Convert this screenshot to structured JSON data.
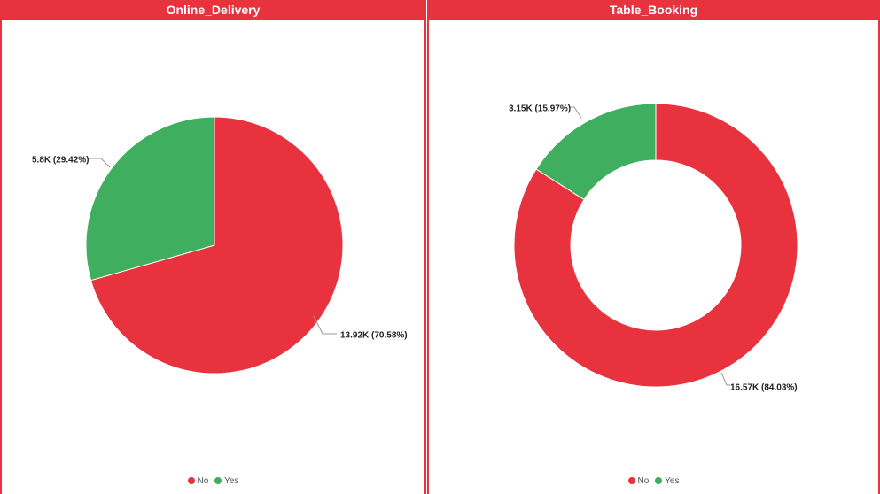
{
  "colors": {
    "no": "#e8333f",
    "yes": "#3fae5f"
  },
  "chart_data": [
    {
      "type": "pie",
      "title": "Online_Delivery",
      "categories": [
        "No",
        "Yes"
      ],
      "values": [
        13.92,
        5.8
      ],
      "labels": [
        "13.92K (70.58%)",
        "5.8K (29.42%)"
      ],
      "percent": [
        70.58,
        29.42
      ],
      "legend": "bottom-center"
    },
    {
      "type": "pie",
      "title": "Table_Booking",
      "categories": [
        "No",
        "Yes"
      ],
      "values": [
        16.57,
        3.15
      ],
      "labels": [
        "16.57K (84.03%)",
        "3.15K (15.97%)"
      ],
      "percent": [
        84.03,
        15.97
      ],
      "donut": true,
      "legend": "bottom-center"
    }
  ]
}
